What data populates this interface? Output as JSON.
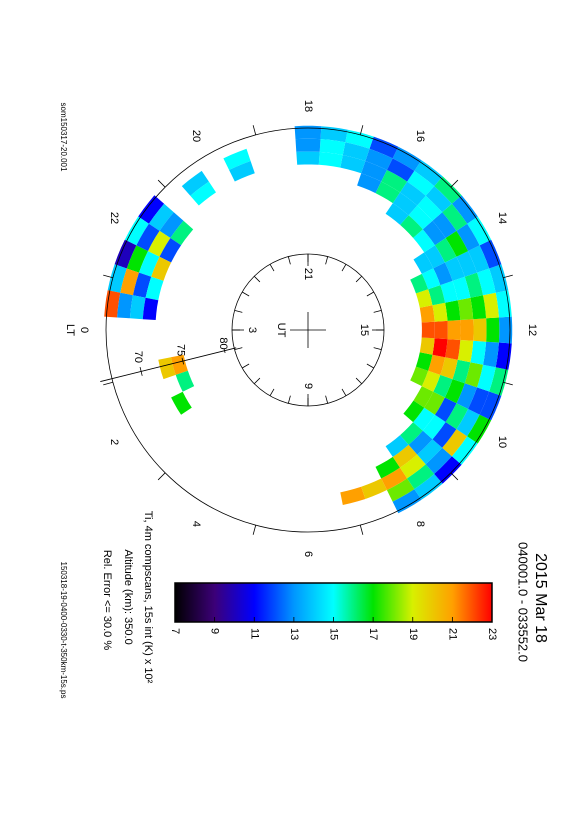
{
  "chart_data": {
    "type": "polar_heatmap",
    "title": "2015 Mar 18",
    "subtitle": "040001.0 - 033552.0",
    "colorbar_label": "Ti, 4m compscans, 15s int (K) x 10²",
    "altitude_label": "Altitude (km): 350.0",
    "error_label": "Rel. Error <= 30.0 %",
    "file_label": "150318-19-0400-0330-t-350km-15s.ps",
    "source_label": "som150317-20.001",
    "lt_axis_label": "LT",
    "lt_ticks": [
      0,
      2,
      4,
      6,
      8,
      10,
      12,
      14,
      16,
      18,
      20,
      22
    ],
    "lat_ticks": [
      70,
      75,
      80
    ],
    "ut_axis_label": "UT",
    "ut_ticks": [
      3,
      9,
      15,
      21
    ],
    "colorbar_lim": [
      7,
      23
    ],
    "colorbar_ticks": [
      7,
      9,
      11,
      13,
      15,
      17,
      19,
      21,
      23
    ],
    "colormap": [
      "#000000",
      "#3c0078",
      "#0000ff",
      "#0096ff",
      "#00ffff",
      "#00e400",
      "#d8f000",
      "#ffa000",
      "#ff0000"
    ],
    "rows": [
      {
        "lat": 67,
        "lt_start": 8,
        "values": [
          13,
          14,
          11,
          15,
          17,
          12,
          16,
          11,
          13,
          15,
          14,
          12,
          15,
          13,
          16,
          14,
          13,
          12,
          15,
          14,
          13
        ]
      },
      {
        "lat": 68.5,
        "lt_start": 8,
        "values": [
          18,
          16,
          13,
          20,
          14,
          12,
          15,
          13,
          17,
          19,
          15,
          14,
          13,
          16,
          14,
          15,
          12,
          13,
          14,
          15,
          13
        ]
      },
      {
        "lat": 70,
        "lt_start": 8,
        "values": [
          21,
          19,
          14,
          12,
          16,
          13,
          18,
          15,
          20,
          17,
          16,
          14,
          17,
          13,
          15,
          14,
          16,
          13,
          14,
          15,
          14
        ]
      },
      {
        "lat": 71.5,
        "lt_start": 8,
        "values": [
          17,
          20,
          13,
          15,
          12,
          17,
          16,
          19,
          21,
          18,
          15,
          14,
          16,
          13,
          15,
          14,
          16,
          13
        ]
      },
      {
        "lat": 73,
        "lt_start": 8.5,
        "values": [
          14,
          16,
          15,
          18,
          16,
          20,
          22,
          21,
          17,
          15,
          13,
          14,
          15,
          16,
          14
        ]
      },
      {
        "lat": 74.5,
        "lt_start": 9.5,
        "values": [
          17,
          18,
          19,
          21,
          23,
          22,
          19,
          16,
          15,
          14
        ]
      },
      {
        "lat": 76,
        "lt_start": 10.5,
        "values": [
          18,
          17,
          20,
          22,
          21,
          19,
          16
        ]
      },
      {
        "lat": 67,
        "lt_start": 21.5,
        "values": [
          11,
          15,
          10,
          14,
          22
        ]
      },
      {
        "lat": 68.5,
        "lt_start": 21.5,
        "values": [
          14,
          12,
          17,
          21,
          13
        ]
      },
      {
        "lat": 70,
        "lt_start": 21.5,
        "values": [
          13,
          19,
          15,
          12,
          14
        ]
      },
      {
        "lat": 71.5,
        "lt_start": 21.5,
        "values": [
          16,
          12,
          20,
          15,
          11
        ]
      },
      {
        "lat": 68.5,
        "lt_start": 19.5,
        "values": [
          15,
          null,
          14
        ]
      },
      {
        "lat": 70,
        "lt_start": 19.5,
        "values": [
          14,
          null,
          15
        ]
      },
      {
        "lat": 73,
        "lt_start": 1,
        "values": [
          20,
          null,
          17
        ]
      },
      {
        "lat": 74.5,
        "lt_start": 1,
        "values": [
          21,
          16
        ]
      },
      {
        "lat": 70,
        "lt_start": 7,
        "values": [
          21,
          20
        ]
      }
    ]
  }
}
